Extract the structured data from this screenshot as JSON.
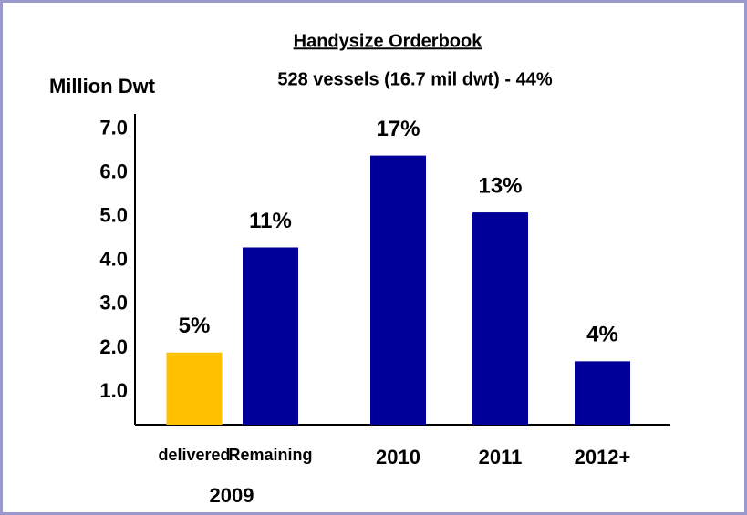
{
  "chart_data": {
    "type": "bar",
    "title": "Handysize Orderbook",
    "subtitle": "528 vessels (16.7 mil dwt) - 44%",
    "y_label": "Million Dwt",
    "categories": [
      "delivered",
      "Remaining",
      "2010",
      "2011",
      "2012+"
    ],
    "group_label": "2009",
    "values": [
      1.9,
      4.3,
      6.4,
      5.1,
      1.7
    ],
    "value_labels": [
      "5%",
      "11%",
      "17%",
      "13%",
      "4%"
    ],
    "colors": [
      "#ffc000",
      "#000099",
      "#000099",
      "#000099",
      "#000099"
    ],
    "ylim": [
      0.25,
      7.35
    ],
    "yticks": [
      {
        "value": 1,
        "label": "1.0"
      },
      {
        "value": 2,
        "label": "2.0"
      },
      {
        "value": 3,
        "label": "3.0"
      },
      {
        "value": 4,
        "label": "4.0"
      },
      {
        "value": 5,
        "label": "5.0"
      },
      {
        "value": 6,
        "label": "6.0"
      },
      {
        "value": 7,
        "label": "7.0"
      }
    ],
    "grid": false
  }
}
